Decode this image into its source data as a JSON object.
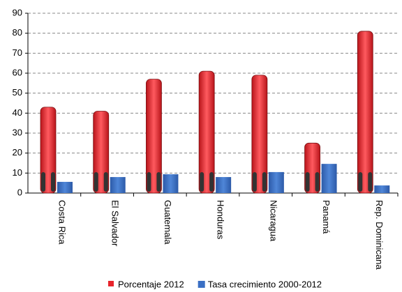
{
  "chart_data": {
    "type": "bar",
    "categories": [
      "Costa Rica",
      "El Salvador",
      "Guatemala",
      "Honduras",
      "Nicaragua",
      "Panamá",
      "Rep. Dominicana"
    ],
    "series": [
      {
        "name": "Porcentaje 2012",
        "color": "#e8242b",
        "values": [
          43,
          41,
          57,
          61,
          59,
          25,
          81
        ]
      },
      {
        "name": "Tasa crecimiento 2000-2012",
        "color": "#3a6fc4",
        "values": [
          5.6,
          8,
          9.4,
          8,
          10.5,
          14.6,
          3.8
        ]
      }
    ],
    "ylim": [
      0,
      90
    ],
    "yticks": [
      0,
      10,
      20,
      30,
      40,
      50,
      60,
      70,
      80,
      90
    ],
    "grid": true
  }
}
